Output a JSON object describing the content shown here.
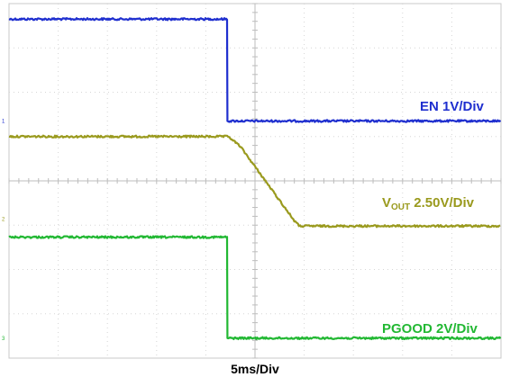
{
  "chart_data": {
    "type": "line",
    "title": "",
    "xlabel": "5ms/Div",
    "ylabel": "",
    "grid": true,
    "divisions": {
      "x": 10,
      "y": 8
    },
    "xlim": [
      -22.5,
      27.5
    ],
    "x_units": "ms",
    "series": [
      {
        "name": "EN 1V/Div",
        "color": "#1f2fcf",
        "values_div": [
          {
            "t": -22.5,
            "v": 7.65
          },
          {
            "t": -0.3,
            "v": 7.65
          },
          {
            "t": -0.3,
            "v": 5.35
          },
          {
            "t": 27.5,
            "v": 5.35
          }
        ]
      },
      {
        "name_main": "V",
        "name_sub": "OUT",
        "name_rest": " 2.50V/Div",
        "color": "#9a9a1e",
        "values_div": [
          {
            "t": -22.5,
            "v": 5.0
          },
          {
            "t": -0.2,
            "v": 5.0
          },
          {
            "t": 1.0,
            "v": 4.78
          },
          {
            "t": 6.5,
            "v": 3.1
          },
          {
            "t": 7.0,
            "v": 2.98
          },
          {
            "t": 27.5,
            "v": 2.98
          }
        ]
      },
      {
        "name": "PGOOD 2V/Div",
        "color": "#22b833",
        "values_div": [
          {
            "t": -22.5,
            "v": 2.73
          },
          {
            "t": -0.3,
            "v": 2.73
          },
          {
            "t": -0.3,
            "v": 0.45
          },
          {
            "t": 27.5,
            "v": 0.45
          }
        ]
      }
    ],
    "channel_markers": [
      {
        "label": "1",
        "color": "#1f2fcf"
      },
      {
        "label": "2",
        "color": "#9a9a1e"
      },
      {
        "label": "3",
        "color": "#22b833"
      }
    ]
  }
}
